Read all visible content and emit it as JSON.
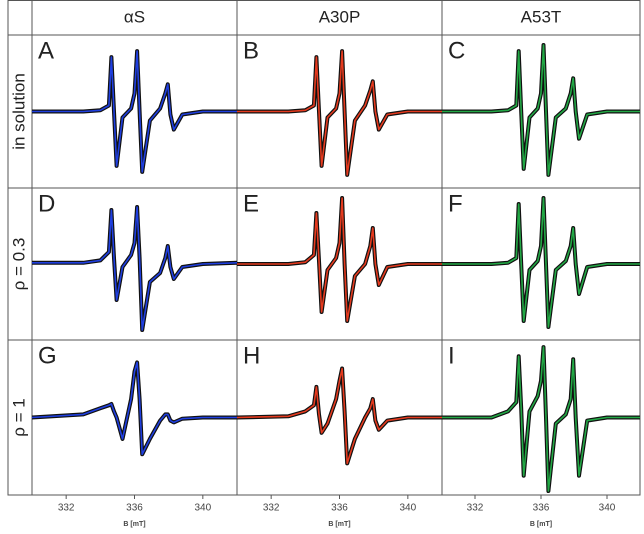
{
  "chart_data": {
    "type": "line",
    "columns": [
      "αS",
      "A30P",
      "A53T"
    ],
    "rows": [
      "in solution",
      "ρ = 0.3",
      "ρ = 1"
    ],
    "xlabel": "B [mT]",
    "xlim": [
      330,
      342
    ],
    "xticks": [
      332,
      336,
      340
    ],
    "ylim": [
      -1.2,
      1.2
    ],
    "x": [
      330,
      333,
      334,
      334.5,
      334.65,
      334.8,
      334.95,
      335.3,
      335.8,
      336.0,
      336.15,
      336.3,
      336.45,
      336.9,
      337.5,
      337.8,
      337.95,
      338.1,
      338.3,
      338.8,
      340,
      342
    ],
    "panels": [
      {
        "label": "A",
        "color": "#1f3fe0",
        "values": [
          0,
          0,
          0.02,
          0.1,
          0.9,
          0,
          -0.9,
          -0.1,
          0.05,
          0.3,
          1,
          0,
          -1,
          -0.15,
          0.05,
          0.3,
          0.45,
          -0.05,
          -0.3,
          -0.05,
          0,
          0
        ]
      },
      {
        "label": "B",
        "color": "#e53a1e",
        "values": [
          0,
          0,
          0.02,
          0.1,
          0.9,
          0,
          -0.9,
          -0.1,
          0.05,
          0.3,
          1,
          0,
          -1.05,
          -0.15,
          0.1,
          0.35,
          0.5,
          0,
          -0.3,
          -0.05,
          0,
          0
        ]
      },
      {
        "label": "C",
        "color": "#22a845",
        "values": [
          0,
          0,
          0.02,
          0.1,
          1,
          0,
          -0.95,
          -0.1,
          0.05,
          0.3,
          1.1,
          0,
          -1.05,
          -0.1,
          0.05,
          0.3,
          0.55,
          0,
          -0.45,
          -0.05,
          0,
          0
        ]
      },
      {
        "label": "D",
        "color": "#1f3fe0",
        "values": [
          0.02,
          0.02,
          0.06,
          0.2,
          0.9,
          0.1,
          -0.6,
          -0.05,
          0.15,
          0.35,
          0.95,
          0.1,
          -1.1,
          -0.3,
          -0.15,
          0.1,
          0.3,
          -0.05,
          -0.25,
          -0.05,
          0,
          0.02
        ]
      },
      {
        "label": "E",
        "color": "#e53a1e",
        "values": [
          0,
          0,
          0.03,
          0.15,
          0.85,
          0.05,
          -0.8,
          -0.1,
          0.1,
          0.35,
          1.1,
          0,
          -0.95,
          -0.2,
          0,
          0.3,
          0.6,
          0,
          -0.35,
          -0.05,
          0,
          0
        ]
      },
      {
        "label": "F",
        "color": "#22a845",
        "values": [
          0,
          0,
          0.02,
          0.1,
          1,
          0,
          -0.95,
          -0.1,
          0.05,
          0.3,
          1.1,
          0,
          -1.05,
          -0.1,
          0.05,
          0.3,
          0.6,
          0,
          -0.5,
          -0.05,
          0,
          0
        ]
      },
      {
        "label": "G",
        "color": "#1f3fe0",
        "values": [
          0,
          0.05,
          0.15,
          0.2,
          0.22,
          0.1,
          0,
          -0.35,
          0.3,
          0.75,
          0.9,
          0.3,
          -0.6,
          -0.35,
          -0.05,
          0.05,
          0.05,
          -0.05,
          -0.08,
          -0.02,
          0,
          0
        ]
      },
      {
        "label": "H",
        "color": "#e53a1e",
        "values": [
          0,
          0.02,
          0.1,
          0.2,
          0.5,
          0.05,
          -0.25,
          -0.1,
          0.3,
          0.6,
          0.8,
          0.1,
          -0.75,
          -0.35,
          0,
          0.15,
          0.3,
          -0.05,
          -0.2,
          -0.05,
          0,
          0
        ]
      },
      {
        "label": "I",
        "color": "#22a845",
        "values": [
          0,
          0,
          0.1,
          0.25,
          1,
          0.15,
          -0.95,
          0.1,
          0.35,
          0.6,
          1.15,
          0,
          -1.2,
          -0.1,
          0.05,
          0.3,
          0.95,
          0,
          -0.95,
          -0.05,
          0,
          0
        ]
      }
    ]
  }
}
